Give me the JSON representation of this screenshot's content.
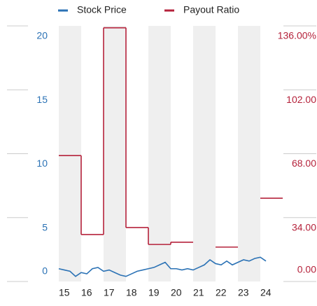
{
  "chart_data": {
    "type": "line-step",
    "xlim": [
      15,
      25
    ],
    "xticks": [
      15,
      16,
      17,
      18,
      19,
      20,
      21,
      22,
      23,
      24
    ],
    "ylim": [
      0,
      20
    ],
    "yticks": [
      0,
      5,
      10,
      15,
      20
    ],
    "y2lim": [
      0,
      136
    ],
    "y2ticks": [
      {
        "value": 0,
        "label": "0.00"
      },
      {
        "value": 34,
        "label": "34.00"
      },
      {
        "value": 68,
        "label": "68.00"
      },
      {
        "value": 102,
        "label": "102.00"
      },
      {
        "value": 136,
        "label": "136.00%"
      }
    ],
    "banded_background": true,
    "series": [
      {
        "name": "Stock Price",
        "color": "#2b72b5",
        "axis": "y",
        "style": "line",
        "x": [
          15,
          15.25,
          15.5,
          15.75,
          16,
          16.25,
          16.5,
          16.75,
          17,
          17.25,
          17.5,
          17.75,
          18,
          18.25,
          18.5,
          18.75,
          19,
          19.25,
          19.5,
          19.75,
          20,
          20.25,
          20.5,
          20.75,
          21,
          21.25,
          21.5,
          21.75,
          22,
          22.25,
          22.5,
          22.75,
          23,
          23.25,
          23.5,
          23.75,
          24,
          24.25
        ],
        "values": [
          1.0,
          0.9,
          0.8,
          0.4,
          0.7,
          0.6,
          1.0,
          1.1,
          0.8,
          0.9,
          0.7,
          0.5,
          0.4,
          0.6,
          0.8,
          0.9,
          1.0,
          1.1,
          1.3,
          1.5,
          1.0,
          1.0,
          0.9,
          1.0,
          0.9,
          1.1,
          1.3,
          1.7,
          1.4,
          1.3,
          1.6,
          1.3,
          1.5,
          1.7,
          1.6,
          1.8,
          1.9,
          1.6
        ]
      },
      {
        "name": "Payout Ratio",
        "color": "#b5223b",
        "axis": "y2",
        "style": "step",
        "x": [
          15,
          16,
          17,
          18,
          19,
          20,
          21,
          22,
          23,
          24
        ],
        "values": [
          67,
          25,
          135,
          28.7,
          19.7,
          20.9,
          null,
          18.3,
          null,
          44.3
        ]
      }
    ]
  }
}
